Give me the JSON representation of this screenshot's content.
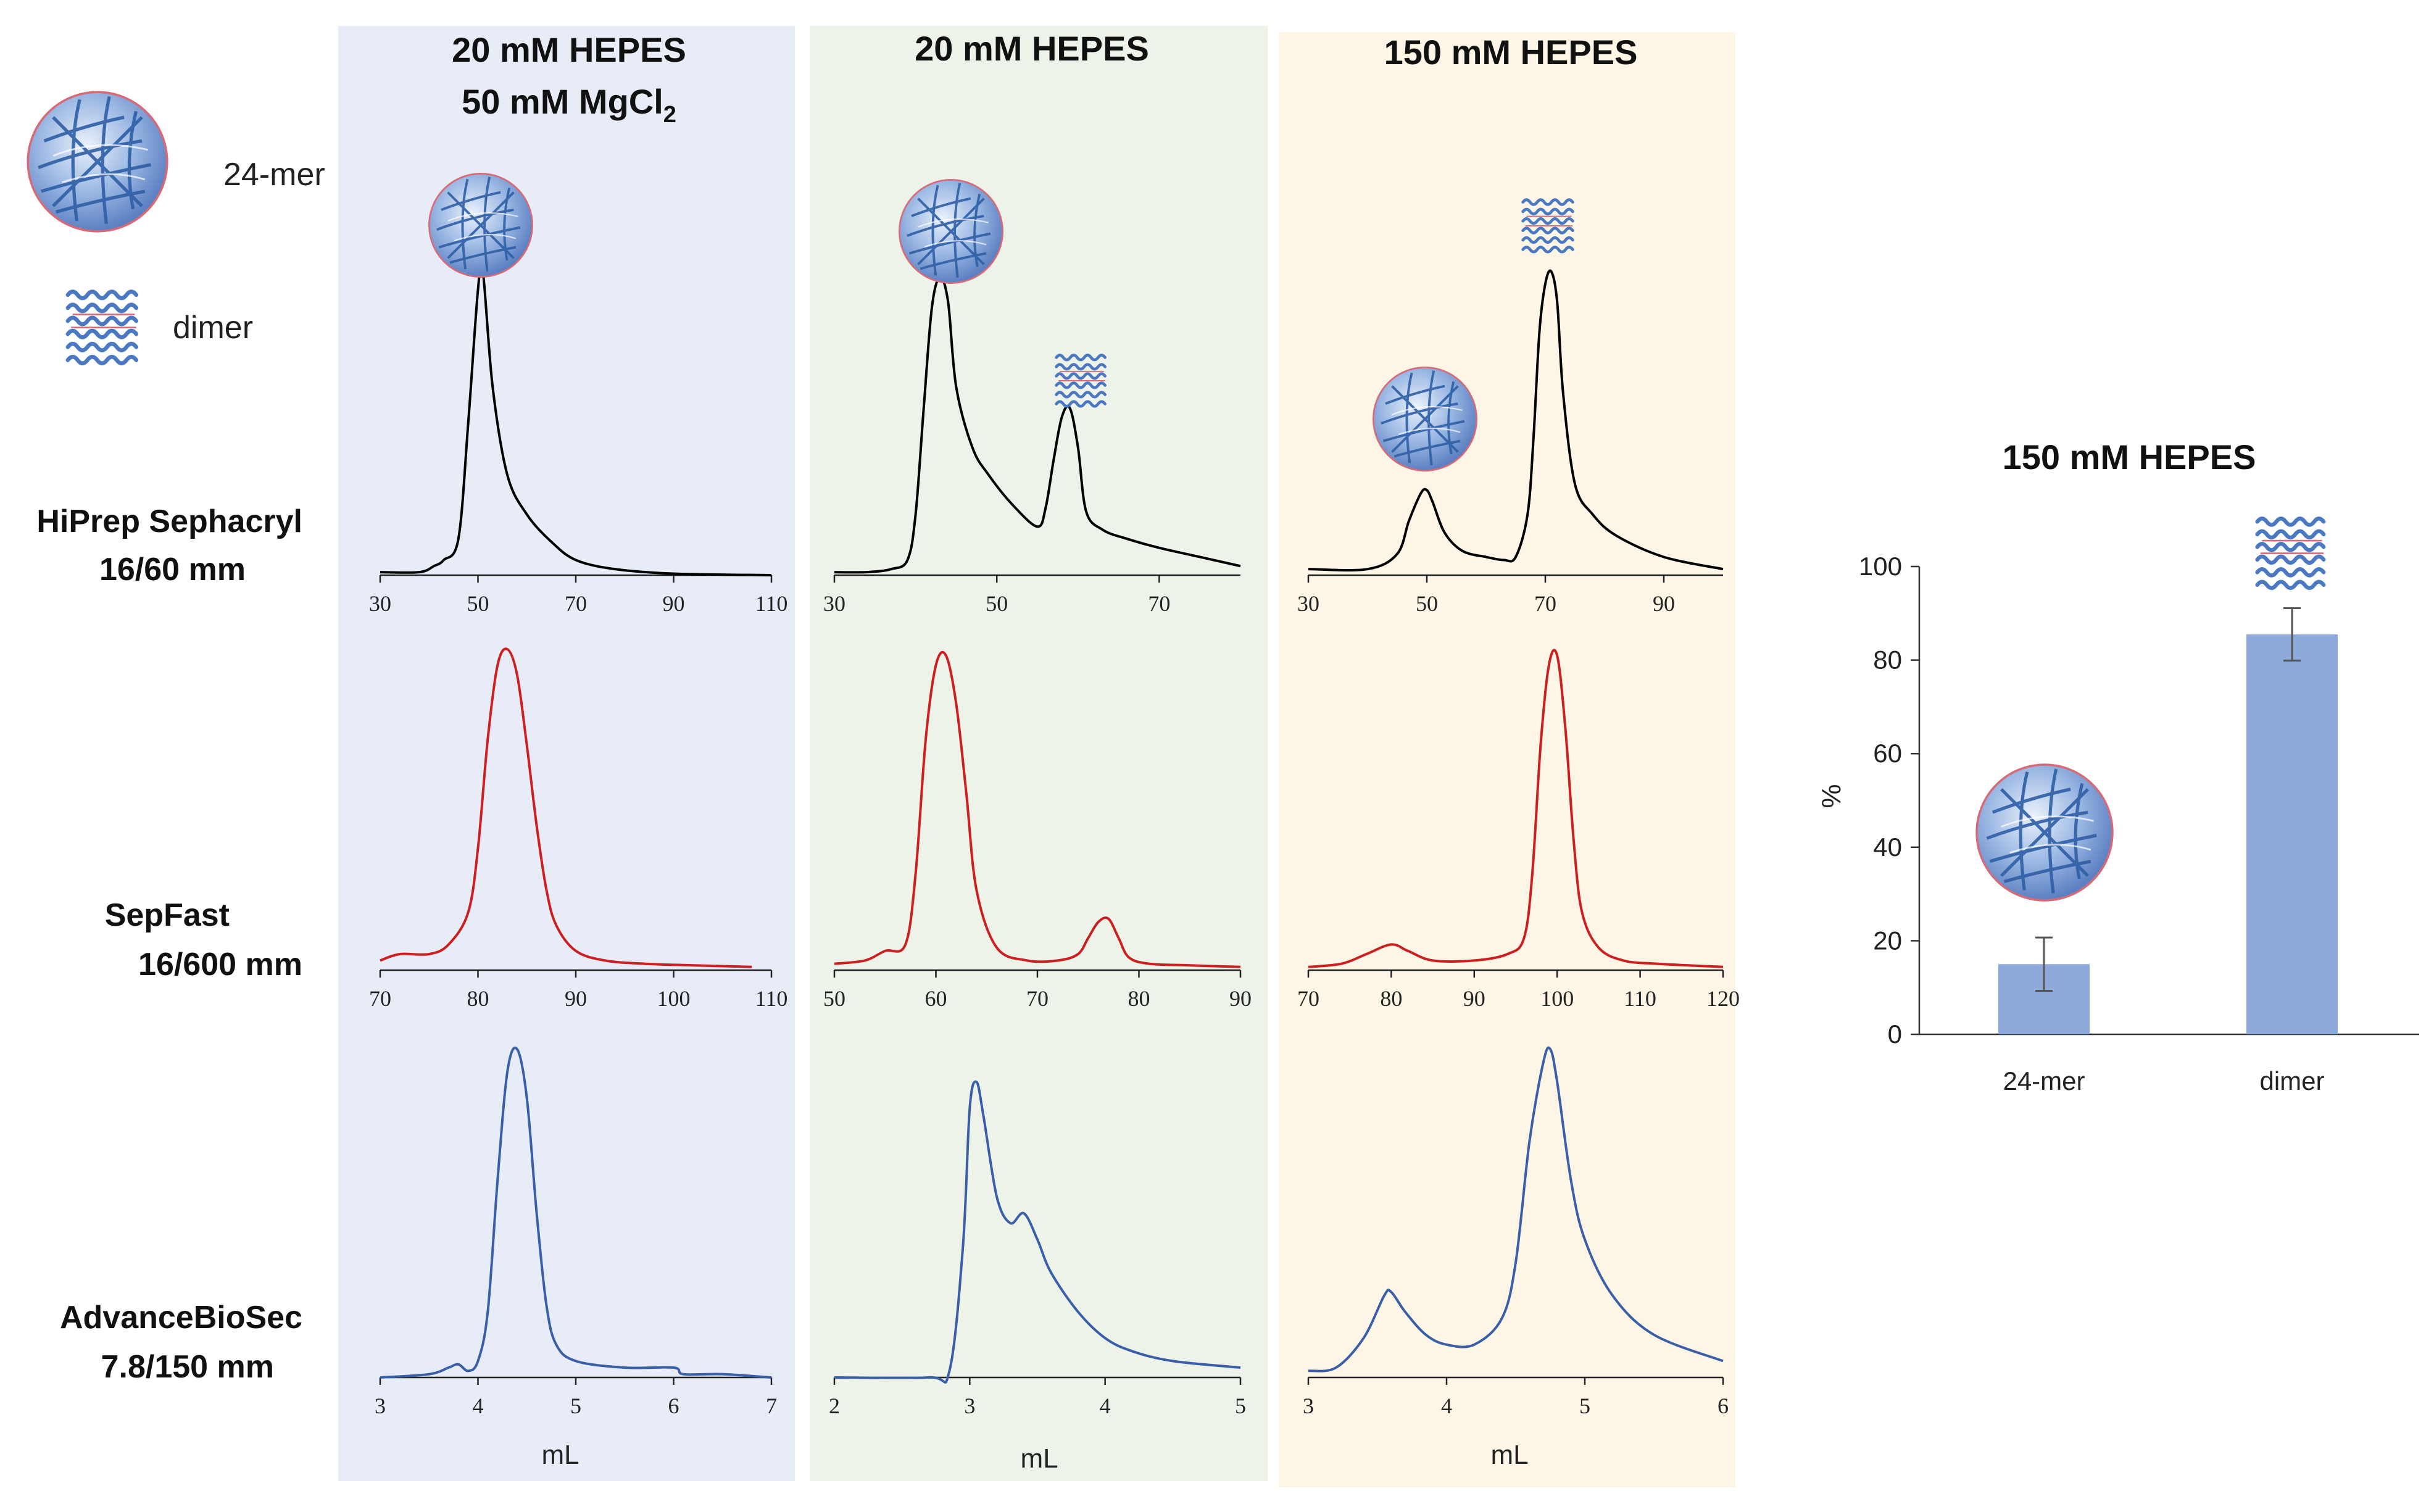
{
  "legend": [
    {
      "label": "24-mer",
      "icon": "sphere-24mer-icon"
    },
    {
      "label": "dimer",
      "icon": "dimer-coil-icon"
    }
  ],
  "columns": [
    {
      "header_lines": [
        "20 mM HEPES",
        "50 mM MgCl"
      ],
      "header_sub": "2",
      "background": "#e8ecf7"
    },
    {
      "header_lines": [
        "20 mM HEPES"
      ],
      "header_sub": "",
      "background": "#eef3ea"
    },
    {
      "header_lines": [
        "150 mM HEPES"
      ],
      "header_sub": "",
      "background": "#fdf6e7"
    }
  ],
  "rows": [
    {
      "label_lines": [
        "HiPrep Sephacryl",
        "16/60 mm"
      ],
      "color": "#000000"
    },
    {
      "label_lines": [
        "SepFast",
        "16/600 mm"
      ],
      "color": "#cc1f1f"
    },
    {
      "label_lines": [
        "AdvanceBioSec",
        "7.8/150 mm"
      ],
      "color": "#3a5fa8"
    }
  ],
  "xlabel": "mL",
  "chart_data": [
    {
      "type": "line",
      "id": "p00",
      "column": 0,
      "row": 0,
      "xlim": [
        30,
        110
      ],
      "xticks": [
        30,
        50,
        70,
        90,
        110
      ],
      "series": [
        {
          "x": [
            30,
            38,
            41,
            43,
            46,
            48,
            50,
            51,
            53,
            56,
            60,
            65,
            70,
            78,
            90,
            110
          ],
          "y": [
            0.01,
            0.01,
            0.03,
            0.05,
            0.12,
            0.5,
            0.94,
            1.0,
            0.62,
            0.33,
            0.2,
            0.11,
            0.05,
            0.02,
            0.005,
            0
          ]
        }
      ]
    },
    {
      "type": "line",
      "id": "p01",
      "column": 1,
      "row": 0,
      "xlim": [
        30,
        80
      ],
      "xticks": [
        30,
        50,
        70
      ],
      "series": [
        {
          "x": [
            30,
            34,
            37,
            39,
            40,
            41,
            42,
            43,
            44,
            45,
            47,
            49,
            52,
            55,
            56,
            57,
            58,
            59,
            60,
            61,
            63,
            66,
            70,
            75,
            80
          ],
          "y": [
            0.01,
            0.01,
            0.02,
            0.05,
            0.2,
            0.55,
            0.88,
            0.98,
            0.9,
            0.62,
            0.42,
            0.33,
            0.23,
            0.16,
            0.22,
            0.38,
            0.52,
            0.55,
            0.42,
            0.21,
            0.15,
            0.12,
            0.09,
            0.06,
            0.03
          ]
        }
      ]
    },
    {
      "type": "line",
      "id": "p02",
      "column": 2,
      "row": 0,
      "xlim": [
        30,
        100
      ],
      "xticks": [
        30,
        50,
        70,
        90
      ],
      "series": [
        {
          "x": [
            30,
            40,
            45,
            47,
            49,
            50,
            51,
            53,
            56,
            60,
            63,
            65,
            67,
            68,
            69,
            70,
            71,
            72,
            73,
            75,
            78,
            82,
            90,
            100
          ],
          "y": [
            0.02,
            0.02,
            0.07,
            0.18,
            0.27,
            0.28,
            0.24,
            0.14,
            0.08,
            0.06,
            0.05,
            0.06,
            0.2,
            0.45,
            0.8,
            0.96,
            1.0,
            0.9,
            0.6,
            0.3,
            0.2,
            0.13,
            0.06,
            0.02
          ]
        }
      ]
    },
    {
      "type": "line",
      "id": "p10",
      "column": 0,
      "row": 1,
      "xlim": [
        70,
        110
      ],
      "xticks": [
        70,
        80,
        90,
        100,
        110
      ],
      "series": [
        {
          "x": [
            70,
            72,
            75,
            77,
            79,
            80,
            81,
            82,
            83,
            84,
            85,
            86,
            87,
            88,
            90,
            93,
            97,
            102,
            108
          ],
          "y": [
            0.03,
            0.05,
            0.05,
            0.08,
            0.18,
            0.38,
            0.72,
            0.95,
            1.0,
            0.92,
            0.7,
            0.45,
            0.25,
            0.14,
            0.06,
            0.03,
            0.02,
            0.015,
            0.01
          ]
        }
      ]
    },
    {
      "type": "line",
      "id": "p11",
      "column": 1,
      "row": 1,
      "xlim": [
        50,
        90
      ],
      "xticks": [
        50,
        60,
        70,
        80,
        90
      ],
      "series": [
        {
          "x": [
            50,
            53,
            55,
            57,
            58,
            59,
            60,
            61,
            62,
            63,
            64,
            66,
            69,
            72,
            74,
            75,
            76,
            77,
            78,
            79,
            81,
            85,
            90
          ],
          "y": [
            0.02,
            0.03,
            0.06,
            0.08,
            0.3,
            0.72,
            0.95,
            0.98,
            0.83,
            0.55,
            0.25,
            0.07,
            0.03,
            0.03,
            0.05,
            0.1,
            0.15,
            0.16,
            0.1,
            0.04,
            0.02,
            0.015,
            0.01
          ]
        }
      ]
    },
    {
      "type": "line",
      "id": "p12",
      "column": 2,
      "row": 1,
      "xlim": [
        70,
        120
      ],
      "xticks": [
        70,
        80,
        90,
        100,
        110,
        120
      ],
      "series": [
        {
          "x": [
            70,
            74,
            77,
            80,
            82,
            85,
            90,
            94,
            96,
            97,
            98,
            99,
            100,
            101,
            102,
            103,
            105,
            108,
            112,
            120
          ],
          "y": [
            0.01,
            0.02,
            0.05,
            0.08,
            0.06,
            0.03,
            0.03,
            0.05,
            0.1,
            0.3,
            0.7,
            0.95,
            0.98,
            0.75,
            0.4,
            0.18,
            0.07,
            0.03,
            0.02,
            0.01
          ]
        }
      ]
    },
    {
      "type": "line",
      "id": "p20",
      "column": 0,
      "row": 2,
      "xlim": [
        3,
        7
      ],
      "xticks": [
        3,
        4,
        5,
        6,
        7
      ],
      "series": [
        {
          "x": [
            3,
            3.5,
            3.7,
            3.8,
            3.9,
            4.0,
            4.1,
            4.2,
            4.3,
            4.4,
            4.5,
            4.6,
            4.7,
            4.8,
            5.0,
            5.5,
            6.0,
            6.1,
            6.5,
            7
          ],
          "y": [
            0,
            0.01,
            0.03,
            0.04,
            0.02,
            0.05,
            0.2,
            0.6,
            0.93,
            1.0,
            0.85,
            0.5,
            0.22,
            0.1,
            0.05,
            0.03,
            0.03,
            0.01,
            0.01,
            0
          ]
        }
      ]
    },
    {
      "type": "line",
      "id": "p21",
      "column": 1,
      "row": 2,
      "xlim": [
        2,
        5
      ],
      "xticks": [
        2,
        3,
        4,
        5
      ],
      "series": [
        {
          "x": [
            2,
            2.7,
            2.85,
            2.95,
            3.0,
            3.05,
            3.1,
            3.2,
            3.3,
            3.4,
            3.5,
            3.6,
            3.8,
            4.0,
            4.2,
            4.5,
            5.0
          ],
          "y": [
            0,
            0,
            0.02,
            0.4,
            0.82,
            0.9,
            0.8,
            0.55,
            0.47,
            0.5,
            0.42,
            0.32,
            0.2,
            0.12,
            0.08,
            0.05,
            0.03
          ]
        }
      ]
    },
    {
      "type": "line",
      "id": "p22",
      "column": 2,
      "row": 2,
      "xlim": [
        3,
        6
      ],
      "xticks": [
        3,
        4,
        5,
        6
      ],
      "series": [
        {
          "x": [
            3,
            3.2,
            3.4,
            3.55,
            3.6,
            3.7,
            3.85,
            4.0,
            4.2,
            4.4,
            4.5,
            4.6,
            4.7,
            4.75,
            4.8,
            4.9,
            5.0,
            5.2,
            5.5,
            6.0
          ],
          "y": [
            0.02,
            0.03,
            0.12,
            0.25,
            0.26,
            0.2,
            0.13,
            0.1,
            0.1,
            0.18,
            0.35,
            0.72,
            0.96,
            1.0,
            0.9,
            0.6,
            0.42,
            0.25,
            0.13,
            0.05
          ]
        }
      ]
    },
    {
      "type": "bar",
      "id": "bars",
      "title": "150 mM HEPES",
      "ylabel": "%",
      "categories": [
        "24-mer",
        "dimer"
      ],
      "values": [
        15,
        85.5
      ],
      "errors": [
        5.7,
        5.6
      ],
      "ylim": [
        0,
        100
      ],
      "yticks": [
        0,
        20,
        40,
        60,
        80,
        100
      ],
      "bar_color": "#8eaadb",
      "grid": false
    }
  ]
}
